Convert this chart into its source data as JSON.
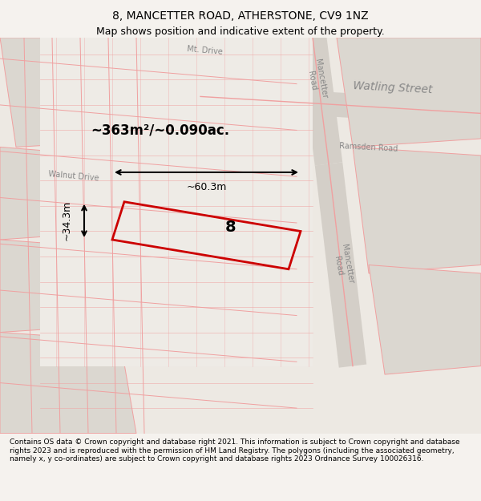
{
  "title": "8, MANCETTER ROAD, ATHERSTONE, CV9 1NZ",
  "subtitle": "Map shows position and indicative extent of the property.",
  "footer": "Contains OS data © Crown copyright and database right 2021. This information is subject to Crown copyright and database rights 2023 and is reproduced with the permission of HM Land Registry. The polygons (including the associated geometry, namely x, y co-ordinates) are subject to Crown copyright and database rights 2023 Ordnance Survey 100026316.",
  "area_label": "~363m²/~0.090ac.",
  "dim_h": "~60.3m",
  "dim_v": "~34.3m",
  "property_number": "8",
  "bg_color": "#f0ede8",
  "map_bg": "#f5f2ee",
  "road_color": "#f0a0a0",
  "road_fill": "#ffffff",
  "plot_color": "#dd0000",
  "plot_linewidth": 2.0,
  "figsize": [
    6.0,
    6.25
  ],
  "dpi": 100,
  "title_fontsize": 10,
  "subtitle_fontsize": 9,
  "footer_fontsize": 6.5,
  "street_label_color": "#888888",
  "watling_street_label": "Watling Street",
  "mancetter_road_label1": "Mancetter\nRoad",
  "mancetter_road_label2": "Mancetter\nRoad",
  "walnut_drive_label": "Walnut Drive",
  "ramsden_road_label": "Ramsden Road"
}
